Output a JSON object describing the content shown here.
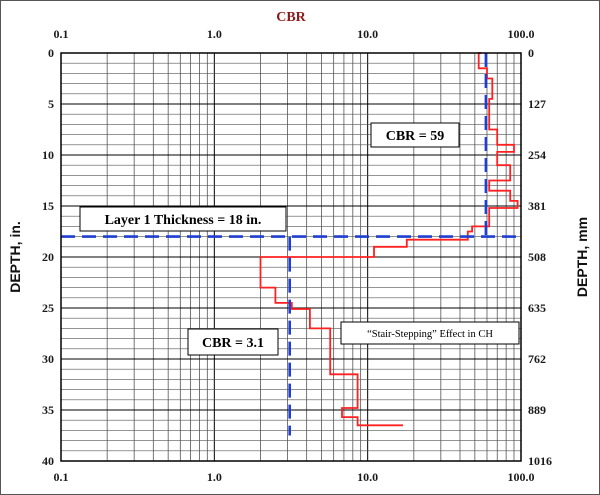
{
  "chart_data": {
    "type": "line",
    "title": "CBR",
    "title_color": "#8b1a1a",
    "xlabel": "CBR",
    "x_scale": "log",
    "xlim": [
      0.1,
      100
    ],
    "x_ticks": [
      0.1,
      1,
      10,
      100
    ],
    "x_tick_labels_top": [
      "0.1",
      "1.0",
      "10.0",
      "100.0"
    ],
    "x_tick_labels_bottom": [
      "0.1",
      "1.0",
      "10.0",
      "100.0"
    ],
    "ylabel": "DEPTH, in.",
    "ylim": [
      0,
      40
    ],
    "y_inverted": true,
    "y_ticks": [
      0,
      5,
      10,
      15,
      20,
      25,
      30,
      35,
      40
    ],
    "y_tick_labels": [
      "0",
      "5",
      "10",
      "15",
      "20",
      "25",
      "30",
      "35",
      "40"
    ],
    "y2label": "DEPTH, mm",
    "y2_tick_labels": [
      "0",
      "127",
      "254",
      "381",
      "508",
      "635",
      "762",
      "889",
      "1016"
    ],
    "grid": true,
    "series": [
      {
        "color": "#ff2020",
        "style": "solid",
        "points": [
          [
            55,
            0
          ],
          [
            53,
            0
          ],
          [
            53,
            1.5
          ],
          [
            60,
            1.5
          ],
          [
            60,
            2.5
          ],
          [
            65,
            2.5
          ],
          [
            65,
            4.5
          ],
          [
            62,
            4.5
          ],
          [
            62,
            7.5
          ],
          [
            70,
            7.5
          ],
          [
            70,
            9
          ],
          [
            90,
            9
          ],
          [
            90,
            9.7
          ],
          [
            70,
            9.7
          ],
          [
            70,
            11
          ],
          [
            85,
            11
          ],
          [
            85,
            12.5
          ],
          [
            62,
            12.5
          ],
          [
            62,
            13.5
          ],
          [
            85,
            13.5
          ],
          [
            85,
            14.5
          ],
          [
            95,
            14.5
          ],
          [
            95,
            15.2
          ],
          [
            62,
            15.2
          ],
          [
            62,
            17
          ],
          [
            48,
            17
          ],
          [
            48,
            17.5
          ],
          [
            45,
            17.5
          ],
          [
            45,
            18.3
          ],
          [
            18,
            18.3
          ],
          [
            18,
            19
          ],
          [
            11,
            19
          ],
          [
            11,
            20
          ],
          [
            2,
            20
          ],
          [
            2,
            23
          ],
          [
            2.5,
            23
          ],
          [
            2.5,
            24.5
          ],
          [
            3.2,
            24.5
          ],
          [
            3.2,
            25.1
          ],
          [
            4.2,
            25.1
          ],
          [
            4.2,
            27
          ],
          [
            5.7,
            27
          ],
          [
            5.7,
            31.5
          ],
          [
            8.6,
            31.5
          ],
          [
            8.6,
            34.8
          ],
          [
            6.8,
            34.8
          ],
          [
            6.8,
            35.7
          ],
          [
            8.6,
            35.7
          ],
          [
            8.6,
            36.5
          ],
          [
            17,
            36.5
          ]
        ]
      },
      {
        "color": "#1e3fd0",
        "style": "dashed",
        "points": [
          [
            59,
            0
          ],
          [
            59,
            18
          ]
        ]
      },
      {
        "color": "#1e3fd0",
        "style": "dashed",
        "points": [
          [
            3.1,
            18
          ],
          [
            3.1,
            37.5
          ]
        ]
      },
      {
        "color": "#1e3fd0",
        "style": "dashed",
        "points": [
          [
            0.1,
            18
          ],
          [
            100,
            18
          ]
        ]
      }
    ],
    "annotations": [
      "Layer 1 Thickness = 18 in.",
      "CBR = 59",
      "CBR = 3.1",
      "“Stair-Stepping” Effect in CH"
    ]
  }
}
